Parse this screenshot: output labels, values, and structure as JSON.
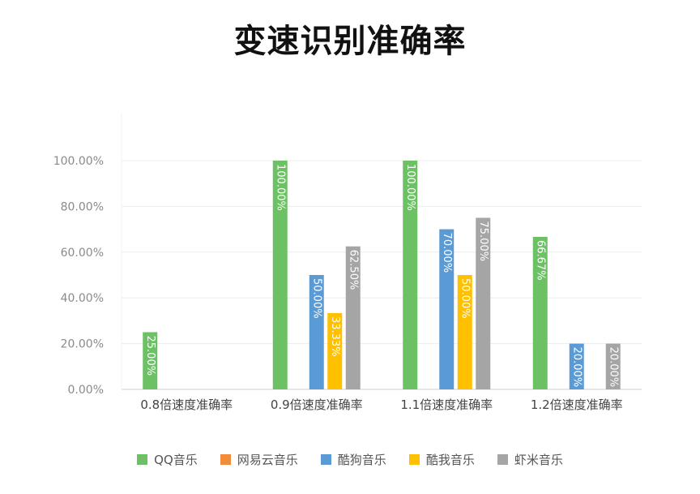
{
  "chart_data": {
    "type": "bar",
    "title": "变速识别准确率",
    "categories": [
      "0.8倍速度准确率",
      "0.9倍速度准确率",
      "1.1倍速度准确率",
      "1.2倍速度准确率"
    ],
    "ylim": [
      0,
      100
    ],
    "yticks": [
      "0.00%",
      "20.00%",
      "40.00%",
      "60.00%",
      "80.00%",
      "100.00%"
    ],
    "grid": true,
    "legend_position": "bottom",
    "series": [
      {
        "name": "QQ音乐",
        "color": "#6cc164",
        "values": [
          25.0,
          100.0,
          100.0,
          66.67
        ],
        "labels": [
          "25.00%",
          "100.00%",
          "100.00%",
          "66.67%"
        ]
      },
      {
        "name": "网易云音乐",
        "color": "#f08c3a",
        "values": [
          0,
          0,
          0,
          0
        ],
        "labels": [
          "",
          "",
          "",
          ""
        ]
      },
      {
        "name": "酷狗音乐",
        "color": "#5b9bd5",
        "values": [
          0,
          50.0,
          70.0,
          20.0
        ],
        "labels": [
          "",
          "50.00%",
          "70.00%",
          "20.00%"
        ]
      },
      {
        "name": "酷我音乐",
        "color": "#ffc000",
        "values": [
          0,
          33.33,
          50.0,
          0
        ],
        "labels": [
          "",
          "33.33%",
          "50.00%",
          ""
        ]
      },
      {
        "name": "虾米音乐",
        "color": "#a5a5a5",
        "values": [
          0,
          62.5,
          75.0,
          20.0
        ],
        "labels": [
          "",
          "62.50%",
          "75.00%",
          "20.00%"
        ]
      }
    ]
  }
}
